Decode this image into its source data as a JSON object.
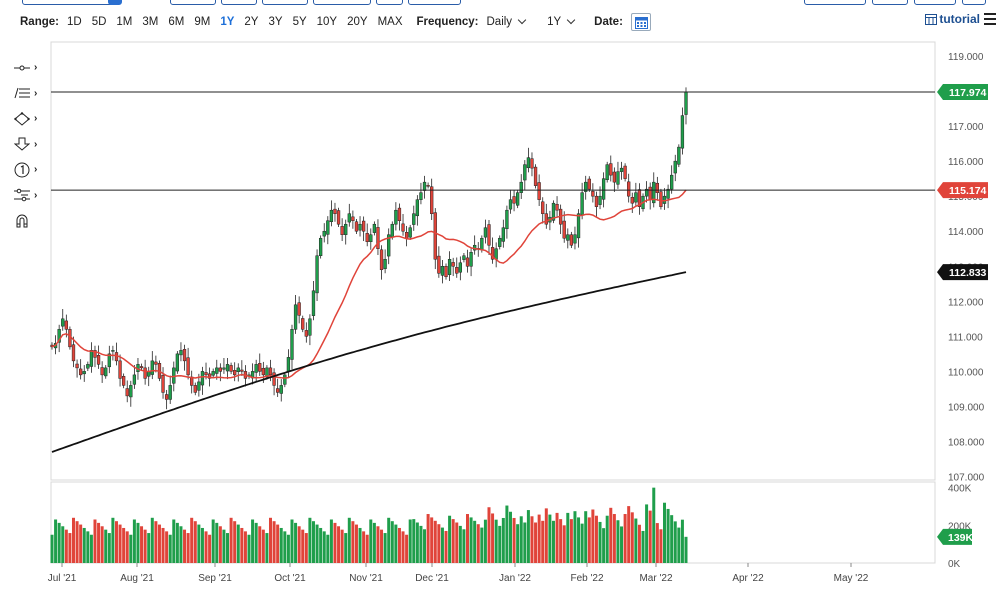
{
  "toolbar": {
    "range_label": "Range:",
    "ranges": [
      "1D",
      "5D",
      "1M",
      "3M",
      "6M",
      "9M",
      "1Y",
      "2Y",
      "3Y",
      "5Y",
      "10Y",
      "20Y",
      "MAX"
    ],
    "active_range": "1Y",
    "frequency_label": "Frequency:",
    "frequency_value": "Daily",
    "period_value": "1Y",
    "date_label": "Date:",
    "tutorial_label": "tutorial"
  },
  "colors": {
    "up": "#1f9e4b",
    "down": "#e0443a",
    "ma_fast": "#e0443a",
    "ma_slow": "#111111",
    "badge_green": "#1f9e4b",
    "badge_red": "#e0443a",
    "badge_black": "#111111"
  },
  "chart_data": {
    "type": "candlestick",
    "frequency": "Daily",
    "price_axis": {
      "ticks": [
        "119.000",
        "118.000",
        "117.000",
        "116.000",
        "115.000",
        "114.000",
        "113.000",
        "112.000",
        "111.000",
        "110.000",
        "109.000",
        "108.000",
        "107.000"
      ],
      "ylim": [
        106.9,
        119.4
      ]
    },
    "volume_axis": {
      "ticks": [
        "400K",
        "200K",
        "0K"
      ],
      "ylim": [
        0,
        430000
      ]
    },
    "x_ticks": [
      "Jul '21",
      "Aug '21",
      "Sep '21",
      "Oct '21",
      "Nov '21",
      "Dec '21",
      "Jan '22",
      "Feb '22",
      "Mar '22",
      "Apr '22",
      "May '22"
    ],
    "horizontal_lines": [
      117.974,
      115.174
    ],
    "badges": {
      "last_price": "117.974",
      "ma_fast": "115.174",
      "ma_slow": "112.833",
      "volume": "139K"
    },
    "series": [
      {
        "name": "",
        "kind": "ohlc",
        "closes": [
          110.7,
          110.8,
          111.2,
          111.5,
          111.2,
          110.7,
          110.3,
          110.1,
          109.9,
          110.0,
          110.2,
          110.6,
          110.4,
          110.2,
          109.9,
          110.1,
          110.5,
          110.6,
          110.3,
          109.8,
          109.6,
          109.3,
          109.6,
          109.9,
          110.2,
          110.1,
          109.8,
          110.0,
          110.3,
          110.2,
          109.8,
          109.4,
          109.2,
          109.6,
          110.1,
          110.5,
          110.6,
          110.3,
          109.9,
          109.6,
          109.4,
          109.7,
          110.0,
          109.9,
          109.8,
          110.0,
          110.1,
          110.0,
          110.1,
          110.2,
          110.0,
          109.9,
          110.1,
          110.0,
          109.8,
          109.9,
          110.0,
          110.2,
          110.0,
          109.9,
          110.1,
          109.9,
          109.6,
          109.4,
          109.6,
          109.9,
          110.4,
          111.2,
          111.9,
          111.6,
          111.2,
          111.0,
          111.5,
          112.3,
          113.3,
          113.8,
          114.0,
          114.3,
          114.6,
          114.5,
          114.2,
          113.9,
          114.2,
          114.5,
          114.3,
          114.0,
          114.2,
          114.0,
          113.7,
          113.9,
          114.2,
          113.5,
          112.9,
          113.2,
          113.9,
          114.2,
          114.6,
          114.3,
          114.0,
          113.8,
          114.1,
          114.5,
          114.9,
          115.1,
          115.4,
          115.3,
          114.5,
          113.2,
          112.8,
          113.0,
          112.7,
          113.2,
          113.0,
          112.8,
          113.1,
          113.3,
          113.0,
          113.4,
          113.6,
          113.5,
          113.8,
          114.1,
          113.6,
          113.2,
          113.5,
          113.8,
          114.1,
          114.6,
          114.9,
          114.8,
          115.1,
          115.4,
          115.9,
          116.1,
          115.8,
          115.3,
          114.9,
          114.5,
          114.2,
          114.4,
          114.8,
          114.6,
          114.2,
          113.8,
          113.9,
          113.6,
          113.9,
          114.5,
          115.1,
          115.4,
          115.2,
          115.0,
          114.7,
          115.0,
          115.5,
          115.9,
          115.6,
          115.4,
          115.7,
          115.8,
          115.5,
          115.0,
          114.8,
          115.1,
          114.7,
          115.0,
          115.2,
          114.9,
          115.4,
          115.1,
          114.7,
          115.0,
          115.2,
          115.6,
          116.0,
          116.4,
          117.3,
          117.974
        ],
        "ylim": [
          106.9,
          119.4
        ]
      },
      {
        "name": "",
        "kind": "moving_average_fast",
        "last": 115.174
      },
      {
        "name": "",
        "kind": "moving_average_slow",
        "last": 112.833
      },
      {
        "name": "",
        "kind": "volume",
        "last": 139000,
        "peak": 400000
      }
    ]
  }
}
